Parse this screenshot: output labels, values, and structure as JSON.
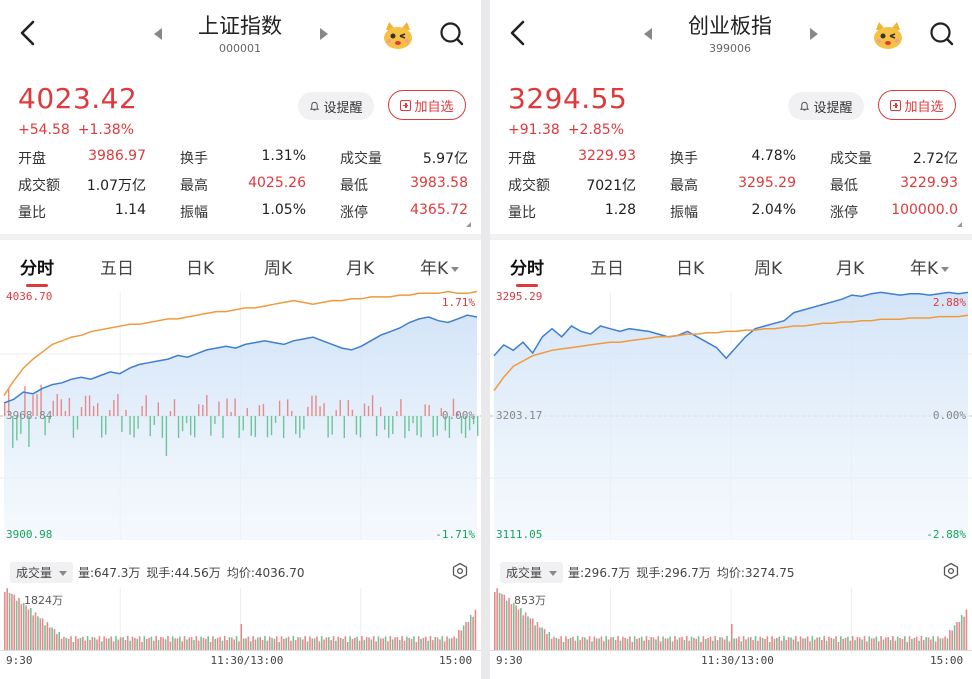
{
  "panels": [
    {
      "title": "上证指数",
      "code": "000001",
      "price": "4023.42",
      "change": "+54.58",
      "change_pct": "+1.38%",
      "remind_label": "设提醒",
      "add_label": "加自选",
      "stats": [
        [
          {
            "label": "开盘",
            "value": "3986.97",
            "color": "red"
          },
          {
            "label": "换手",
            "value": "1.31%",
            "color": "black"
          },
          {
            "label": "成交量",
            "value": "5.97亿",
            "color": "black"
          }
        ],
        [
          {
            "label": "成交额",
            "value": "1.07万亿",
            "color": "black"
          },
          {
            "label": "最高",
            "value": "4025.26",
            "color": "red"
          },
          {
            "label": "最低",
            "value": "3983.58",
            "color": "red"
          }
        ],
        [
          {
            "label": "量比",
            "value": "1.14",
            "color": "black"
          },
          {
            "label": "振幅",
            "value": "1.05%",
            "color": "black"
          },
          {
            "label": "涨停",
            "value": "4365.72",
            "color": "red"
          }
        ]
      ],
      "tabs": [
        "分时",
        "五日",
        "日K",
        "周K",
        "月K",
        "年K"
      ],
      "active_tab": 0,
      "axis": {
        "top": "4036.70",
        "mid": "3968.84",
        "bottom": "3900.98",
        "top_pct": "1.71%",
        "mid_pct": "0.00%",
        "bottom_pct": "-1.71%"
      },
      "vol_select": "成交量",
      "vol_info": [
        "量:647.3万",
        "现手:44.56万",
        "均价:4036.70"
      ],
      "vol_max": "1824万",
      "times": [
        "9:30",
        "11:30/13:00",
        "15:00"
      ],
      "chart_data": {
        "type": "line",
        "y_range": [
          3900.98,
          4036.7
        ],
        "y_baseline": 3968.84,
        "series": [
          {
            "color": "#3f7fd0",
            "values": [
              3976,
              3978,
              3982,
              3981,
              3984,
              3986,
              3987,
              3989,
              3990,
              3989,
              3991,
              3993,
              3992,
              3995,
              3997,
              3998,
              3999,
              4000,
              4002,
              4001,
              4003,
              4005,
              4006,
              4007,
              4006,
              4008,
              4009,
              4010,
              4009,
              4008,
              4010,
              4011,
              4012,
              4010,
              4008,
              4006,
              4005,
              4007,
              4010,
              4013,
              4015,
              4017,
              4020,
              4022,
              4023,
              4021,
              4020,
              4022,
              4024,
              4023
            ]
          },
          {
            "color": "#ef9a3c",
            "values": [
              3980,
              3988,
              3995,
              4000,
              4004,
              4008,
              4010,
              4012,
              4013,
              4015,
              4016,
              4017,
              4018,
              4019,
              4019,
              4020,
              4021,
              4022,
              4022,
              4023,
              4024,
              4025,
              4026,
              4026,
              4027,
              4028,
              4028,
              4029,
              4030,
              4031,
              4032,
              4031,
              4030,
              4031,
              4032,
              4032,
              4033,
              4033,
              4034,
              4034,
              4034,
              4035,
              4035,
              4036,
              4036,
              4036,
              4037,
              4036,
              4036,
              4037
            ]
          }
        ]
      }
    },
    {
      "title": "创业板指",
      "code": "399006",
      "price": "3294.55",
      "change": "+91.38",
      "change_pct": "+2.85%",
      "remind_label": "设提醒",
      "add_label": "加自选",
      "stats": [
        [
          {
            "label": "开盘",
            "value": "3229.93",
            "color": "red"
          },
          {
            "label": "换手",
            "value": "4.78%",
            "color": "black"
          },
          {
            "label": "成交量",
            "value": "2.72亿",
            "color": "black"
          }
        ],
        [
          {
            "label": "成交额",
            "value": "7021亿",
            "color": "black"
          },
          {
            "label": "最高",
            "value": "3295.29",
            "color": "red"
          },
          {
            "label": "最低",
            "value": "3229.93",
            "color": "red"
          }
        ],
        [
          {
            "label": "量比",
            "value": "1.28",
            "color": "black"
          },
          {
            "label": "振幅",
            "value": "2.04%",
            "color": "black"
          },
          {
            "label": "涨停",
            "value": "100000.0",
            "color": "red"
          }
        ]
      ],
      "tabs": [
        "分时",
        "五日",
        "日K",
        "周K",
        "月K",
        "年K"
      ],
      "active_tab": 0,
      "axis": {
        "top": "3295.29",
        "mid": "3203.17",
        "bottom": "3111.05",
        "top_pct": "2.88%",
        "mid_pct": "0.00%",
        "bottom_pct": "-2.88%"
      },
      "vol_select": "成交量",
      "vol_info": [
        "量:296.7万",
        "现手:296.7万",
        "均价:3274.75"
      ],
      "vol_max": "853万",
      "times": [
        "9:30",
        "11:30/13:00",
        "15:00"
      ],
      "chart_data": {
        "type": "line",
        "y_range": [
          3111.05,
          3295.29
        ],
        "y_baseline": 3203.17,
        "series": [
          {
            "color": "#3f7fd0",
            "values": [
              3248,
              3256,
              3252,
              3258,
              3250,
              3262,
              3268,
              3262,
              3270,
              3266,
              3264,
              3270,
              3268,
              3266,
              3268,
              3267,
              3266,
              3264,
              3262,
              3263,
              3266,
              3262,
              3258,
              3254,
              3246,
              3254,
              3262,
              3268,
              3270,
              3272,
              3274,
              3280,
              3282,
              3284,
              3286,
              3288,
              3290,
              3293,
              3292,
              3294,
              3295,
              3294,
              3293,
              3294,
              3294,
              3293,
              3294,
              3295,
              3294,
              3295
            ]
          },
          {
            "color": "#ef9a3c",
            "values": [
              3222,
              3232,
              3240,
              3244,
              3248,
              3250,
              3252,
              3253,
              3254,
              3255,
              3256,
              3257,
              3258,
              3258,
              3259,
              3260,
              3261,
              3262,
              3262,
              3263,
              3264,
              3264,
              3265,
              3265,
              3266,
              3266,
              3267,
              3267,
              3268,
              3268,
              3269,
              3270,
              3270,
              3271,
              3272,
              3272,
              3273,
              3273,
              3274,
              3274,
              3275,
              3275,
              3275,
              3276,
              3276,
              3276,
              3277,
              3277,
              3277,
              3278
            ]
          }
        ]
      }
    }
  ]
}
